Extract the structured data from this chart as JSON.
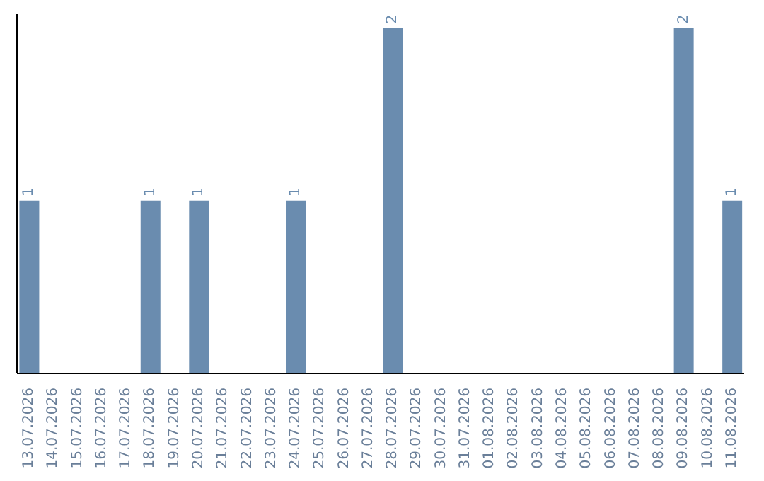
{
  "chart_data": {
    "type": "bar",
    "categories": [
      "13.07.2026",
      "14.07.2026",
      "15.07.2026",
      "16.07.2026",
      "17.07.2026",
      "18.07.2026",
      "19.07.2026",
      "20.07.2026",
      "21.07.2026",
      "22.07.2026",
      "23.07.2026",
      "24.07.2026",
      "25.07.2026",
      "26.07.2026",
      "27.07.2026",
      "28.07.2026",
      "29.07.2026",
      "30.07.2026",
      "31.07.2026",
      "01.08.2026",
      "02.08.2026",
      "03.08.2026",
      "04.08.2026",
      "05.08.2026",
      "06.08.2026",
      "07.08.2026",
      "08.08.2026",
      "09.08.2026",
      "10.08.2026",
      "11.08.2026"
    ],
    "values": [
      1,
      0,
      0,
      0,
      0,
      1,
      0,
      1,
      0,
      0,
      0,
      1,
      0,
      0,
      0,
      2,
      0,
      0,
      0,
      0,
      0,
      0,
      0,
      0,
      0,
      0,
      0,
      2,
      0,
      1
    ],
    "value_labels": [
      "1",
      null,
      null,
      null,
      null,
      "1",
      null,
      "1",
      null,
      null,
      null,
      "1",
      null,
      null,
      null,
      "2",
      null,
      null,
      null,
      null,
      null,
      null,
      null,
      null,
      null,
      null,
      null,
      "2",
      null,
      "1"
    ],
    "color": "#6a8caf",
    "tick_labels": "x",
    "grid": false,
    "legend": false
  }
}
